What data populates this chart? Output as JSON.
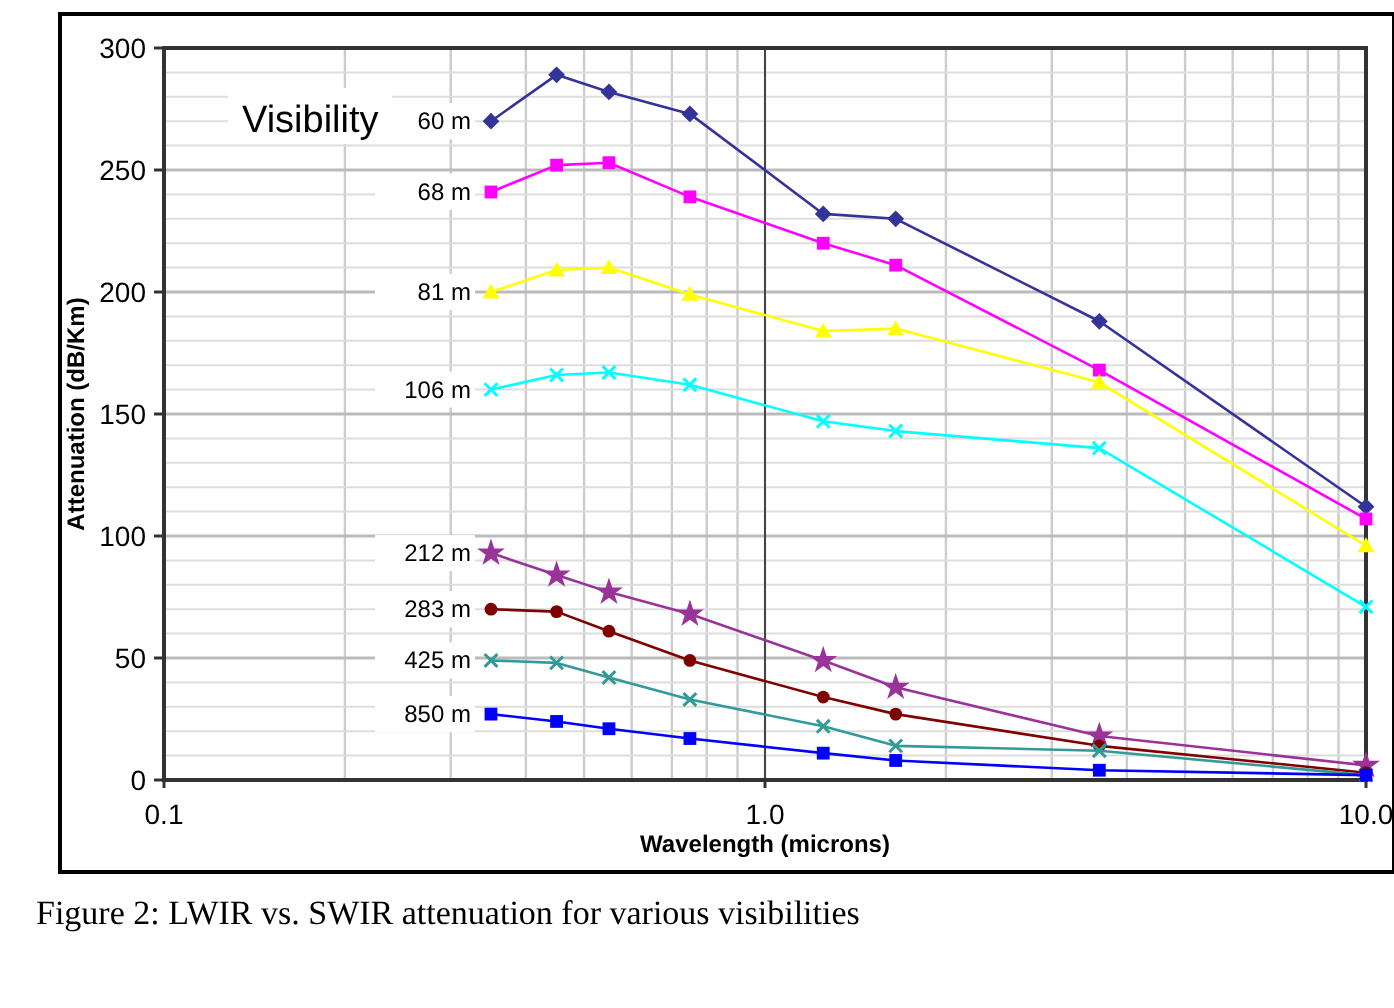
{
  "chart_data": {
    "type": "line",
    "xlabel": "Wavelength (microns)",
    "ylabel": "Attenuation (dB/Km)",
    "log": "x",
    "grid": true,
    "annotations": [
      "Visibility",
      "Figure 2:  LWIR vs. SWIR  attenuation for various visibilities"
    ],
    "x": [
      0.35,
      0.45,
      0.55,
      0.75,
      1.25,
      1.65,
      3.6,
      10
    ],
    "xlim": [
      0.1,
      10
    ],
    "xticks": [
      0.1,
      {
        "value": 0.2,
        "label": null
      },
      {
        "value": 0.3,
        "label": null
      },
      {
        "value": 0.4,
        "label": null
      },
      {
        "value": 0.5,
        "label": null
      },
      {
        "value": 0.6,
        "label": null
      },
      {
        "value": 0.7,
        "label": null
      },
      {
        "value": 0.8,
        "label": null
      },
      {
        "value": 0.9,
        "label": null
      },
      {
        "value": 1,
        "label": "1.0"
      },
      {
        "value": 2,
        "label": null
      },
      {
        "value": 3,
        "label": null
      },
      {
        "value": 4,
        "label": null
      },
      {
        "value": 5,
        "label": null
      },
      {
        "value": 6,
        "label": null
      },
      {
        "value": 7,
        "label": null
      },
      {
        "value": 8,
        "label": null
      },
      {
        "value": 9,
        "label": null
      },
      {
        "value": 10,
        "label": "10.0"
      }
    ],
    "ylim": [
      0,
      300
    ],
    "yticks": [
      0,
      {
        "value": 10,
        "label": null
      },
      {
        "value": 20,
        "label": null
      },
      {
        "value": 30,
        "label": null
      },
      {
        "value": 40,
        "label": null
      },
      50,
      {
        "value": 60,
        "label": null
      },
      {
        "value": 70,
        "label": null
      },
      {
        "value": 80,
        "label": null
      },
      {
        "value": 90,
        "label": null
      },
      100,
      {
        "value": 110,
        "label": null
      },
      {
        "value": 120,
        "label": null
      },
      {
        "value": 130,
        "label": null
      },
      {
        "value": 140,
        "label": null
      },
      150,
      {
        "value": 160,
        "label": null
      },
      {
        "value": 170,
        "label": null
      },
      {
        "value": 180,
        "label": null
      },
      {
        "value": 190,
        "label": null
      },
      200,
      {
        "value": 210,
        "label": null
      },
      {
        "value": 220,
        "label": null
      },
      {
        "value": 230,
        "label": null
      },
      {
        "value": 240,
        "label": null
      },
      250,
      {
        "value": 260,
        "label": null
      },
      {
        "value": 270,
        "label": null
      },
      {
        "value": 280,
        "label": null
      },
      {
        "value": 290,
        "label": null
      },
      300
    ],
    "ref_lines": [
      {
        "axis": "x",
        "value": 1,
        "color": "#444444"
      }
    ],
    "series": [
      {
        "name": "60 m",
        "color": "#333399",
        "marker": "diamond",
        "values": [
          270,
          289,
          282,
          273,
          232,
          230,
          188,
          112
        ]
      },
      {
        "name": "68 m",
        "color": "#ff00ff",
        "marker": "square",
        "values": [
          241,
          252,
          253,
          239,
          220,
          211,
          168,
          107
        ]
      },
      {
        "name": "81 m",
        "color": "#ffff00",
        "marker": "triangle",
        "values": [
          200,
          209,
          210,
          199,
          184,
          185,
          163,
          96
        ]
      },
      {
        "name": "106 m",
        "color": "#00ffff",
        "marker": "cross",
        "values": [
          160,
          166,
          167,
          162,
          147,
          143,
          136,
          71
        ]
      },
      {
        "name": "212 m",
        "color": "#993399",
        "marker": "star",
        "values": [
          93,
          84,
          77,
          68,
          49,
          38,
          18,
          6
        ]
      },
      {
        "name": "283 m",
        "color": "#800000",
        "marker": "circle",
        "values": [
          70,
          69,
          61,
          49,
          34,
          27,
          14,
          3
        ]
      },
      {
        "name": "425 m",
        "color": "#339999",
        "marker": "cross",
        "values": [
          49,
          48,
          42,
          33,
          22,
          14,
          12,
          2
        ]
      },
      {
        "name": "850 m",
        "color": "#0000ff",
        "marker": "square",
        "values": [
          27,
          24,
          21,
          17,
          11,
          8,
          4,
          2
        ]
      }
    ]
  }
}
